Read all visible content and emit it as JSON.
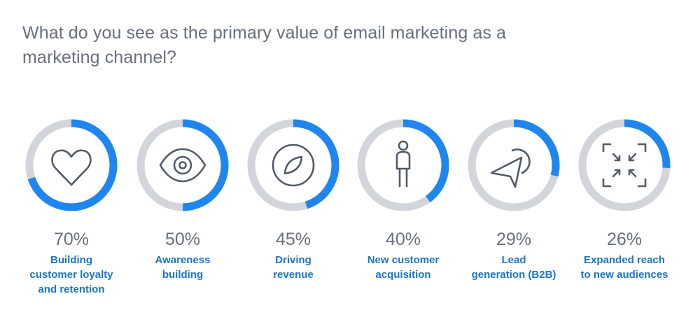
{
  "title": "What do you see as the primary value of email marketing as a marketing channel?",
  "colors": {
    "accent": "#1f86f0",
    "track": "#d2d5da",
    "icon": "#525c67",
    "title": "#67707b",
    "label": "#1c74c9"
  },
  "chart_data": {
    "type": "donut",
    "title": "What do you see as the primary value of email marketing as a marketing channel?",
    "unit": "%",
    "items": [
      {
        "value": 70,
        "value_label": "70%",
        "label": "Building customer loyalty and retention",
        "label_lines": [
          "Building",
          "customer loyalty",
          "and retention"
        ],
        "icon": "heart-icon"
      },
      {
        "value": 50,
        "value_label": "50%",
        "label": "Awareness building",
        "label_lines": [
          "Awareness",
          "building"
        ],
        "icon": "eye-icon"
      },
      {
        "value": 45,
        "value_label": "45%",
        "label": "Driving revenue",
        "label_lines": [
          "Driving",
          "revenue"
        ],
        "icon": "compass-icon"
      },
      {
        "value": 40,
        "value_label": "40%",
        "label": "New customer acquisition",
        "label_lines": [
          "New customer",
          "acquisition"
        ],
        "icon": "person-icon"
      },
      {
        "value": 29,
        "value_label": "29%",
        "label": "Lead generation (B2B)",
        "label_lines": [
          "Lead",
          "generation (B2B)"
        ],
        "icon": "cursor-icon"
      },
      {
        "value": 26,
        "value_label": "26%",
        "label": "Expanded reach to new audiences",
        "label_lines": [
          "Expanded reach",
          "to new audiences"
        ],
        "icon": "expand-icon"
      }
    ]
  }
}
